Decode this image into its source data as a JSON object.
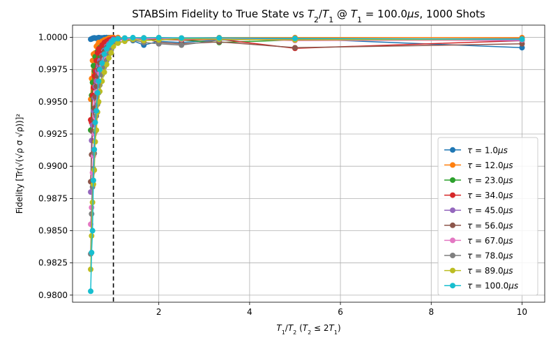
{
  "chart_data": {
    "type": "line",
    "title_parts": [
      {
        "t": "STABSim Fidelity to True State vs "
      },
      {
        "t": "T",
        "i": true
      },
      {
        "t": "2",
        "sub": true
      },
      {
        "t": "/"
      },
      {
        "t": "T",
        "i": true
      },
      {
        "t": "1",
        "sub": true
      },
      {
        "t": " @ "
      },
      {
        "t": "T",
        "i": true
      },
      {
        "t": "1",
        "sub": true
      },
      {
        "t": " = 100.0"
      },
      {
        "t": "μs",
        "i": true
      },
      {
        "t": ", 1000 Shots"
      }
    ],
    "xlabel_parts": [
      {
        "t": "T",
        "i": true
      },
      {
        "t": "1",
        "sub": true
      },
      {
        "t": "/"
      },
      {
        "t": "T",
        "i": true
      },
      {
        "t": "2",
        "sub": true
      },
      {
        "t": " ("
      },
      {
        "t": "T",
        "i": true
      },
      {
        "t": "2",
        "sub": true
      },
      {
        "t": " ≤ 2"
      },
      {
        "t": "T",
        "i": true
      },
      {
        "t": "1",
        "sub": true
      },
      {
        "t": ")"
      }
    ],
    "ylabel": "Fidelity [Tr(√(√ρ σ √ρ))]²",
    "xlim": [
      0.1,
      10.5
    ],
    "ylim": [
      0.97945,
      1.00095
    ],
    "x_ticks": [
      2,
      4,
      6,
      8,
      10
    ],
    "x_tick_labels": [
      "2",
      "4",
      "6",
      "8",
      "10"
    ],
    "y_ticks": [
      0.98,
      0.9825,
      0.985,
      0.9875,
      0.99,
      0.9925,
      0.995,
      0.9975,
      1.0
    ],
    "y_tick_labels": [
      "0.9800",
      "0.9825",
      "0.9850",
      "0.9875",
      "0.9900",
      "0.9925",
      "0.9950",
      "0.9975",
      "1.0000"
    ],
    "grid": true,
    "vline": {
      "x": 1.0,
      "style": "dashed",
      "color": "#000000"
    },
    "legend_position": "lower-right",
    "x": [
      0.5,
      0.52,
      0.54,
      0.56,
      0.58,
      0.6,
      0.625,
      0.65,
      0.675,
      0.7,
      0.75,
      0.8,
      0.85,
      0.9,
      0.95,
      1.0,
      1.1,
      1.25,
      1.43,
      1.67,
      2.0,
      2.5,
      3.33,
      5.0,
      10.0
    ],
    "series": [
      {
        "name": "τ = 1.0μs",
        "name_parts": [
          {
            "t": "τ",
            "i": true
          },
          {
            "t": " = 1.0"
          },
          {
            "t": "μs",
            "i": true
          }
        ],
        "color": "#1f77b4",
        "values": [
          0.99985,
          0.99988,
          0.99992,
          0.99995,
          0.99996,
          0.99994,
          0.99993,
          0.99995,
          0.99998,
          0.99997,
          0.99996,
          0.99998,
          0.99999,
          0.99998,
          0.99999,
          0.99998,
          0.99997,
          0.99985,
          0.99975,
          0.9994,
          0.9997,
          0.9996,
          0.9998,
          0.9999,
          0.9992
        ]
      },
      {
        "name": "τ = 12.0μs",
        "name_parts": [
          {
            "t": "τ",
            "i": true
          },
          {
            "t": " = 12.0"
          },
          {
            "t": "μs",
            "i": true
          }
        ],
        "color": "#ff7f0e",
        "values": [
          0.9952,
          0.9968,
          0.9982,
          0.9987,
          0.9986,
          0.9988,
          0.9993,
          0.9994,
          0.9996,
          0.9995,
          0.9997,
          0.9998,
          0.99985,
          0.99995,
          0.99998,
          0.99999,
          0.99999,
          0.99995,
          0.99992,
          0.99996,
          0.99998,
          0.99995,
          0.99998,
          0.99998,
          0.99998
        ]
      },
      {
        "name": "τ = 23.0μs",
        "name_parts": [
          {
            "t": "τ",
            "i": true
          },
          {
            "t": " = 23.0"
          },
          {
            "t": "μs",
            "i": true
          }
        ],
        "color": "#2ca02c",
        "values": [
          0.9928,
          0.9955,
          0.9965,
          0.9978,
          0.9974,
          0.9985,
          0.9982,
          0.9989,
          0.9984,
          0.9992,
          0.9993,
          0.9995,
          0.9996,
          0.9997,
          0.9998,
          0.99985,
          0.9999,
          0.99975,
          0.9998,
          0.99985,
          0.99982,
          0.9998,
          0.9996,
          0.9998,
          0.99985
        ]
      },
      {
        "name": "τ = 34.0μs",
        "name_parts": [
          {
            "t": "τ",
            "i": true
          },
          {
            "t": " = 34.0"
          },
          {
            "t": "μs",
            "i": true
          }
        ],
        "color": "#d62728",
        "values": [
          0.9936,
          0.9934,
          0.9955,
          0.9961,
          0.997,
          0.9974,
          0.9982,
          0.9988,
          0.9991,
          0.9988,
          0.9994,
          0.9996,
          0.9997,
          0.9998,
          0.99985,
          0.9999,
          0.9998,
          0.9998,
          0.99985,
          0.9999,
          0.99985,
          0.9998,
          0.99985,
          0.99915,
          0.99975
        ]
      },
      {
        "name": "τ = 45.0μs",
        "name_parts": [
          {
            "t": "τ",
            "i": true
          },
          {
            "t": " = 45.0"
          },
          {
            "t": "μs",
            "i": true
          }
        ],
        "color": "#9467bd",
        "values": [
          0.988,
          0.992,
          0.9932,
          0.9943,
          0.9953,
          0.9962,
          0.9966,
          0.9974,
          0.9978,
          0.9982,
          0.9986,
          0.999,
          0.9993,
          0.9995,
          0.9997,
          0.99985,
          0.9999,
          0.99985,
          0.99992,
          0.9999,
          0.99995,
          0.99985,
          0.99993,
          0.99985,
          0.99975
        ]
      },
      {
        "name": "τ = 56.0μs",
        "name_parts": [
          {
            "t": "τ",
            "i": true
          },
          {
            "t": " = 56.0"
          },
          {
            "t": "μs",
            "i": true
          }
        ],
        "color": "#8c564b",
        "values": [
          0.9888,
          0.9909,
          0.9927,
          0.9936,
          0.9945,
          0.9954,
          0.9962,
          0.997,
          0.9975,
          0.998,
          0.9985,
          0.9989,
          0.9992,
          0.9994,
          0.9996,
          0.9998,
          0.99985,
          0.9998,
          0.99985,
          0.99995,
          0.9996,
          0.9995,
          0.99965,
          0.9992,
          0.9995
        ]
      },
      {
        "name": "τ = 67.0μs",
        "name_parts": [
          {
            "t": "τ",
            "i": true
          },
          {
            "t": " = 67.0"
          },
          {
            "t": "μs",
            "i": true
          }
        ],
        "color": "#e377c2",
        "values": [
          0.9855,
          0.9868,
          0.9895,
          0.9908,
          0.9925,
          0.9938,
          0.9949,
          0.9958,
          0.9965,
          0.9972,
          0.9978,
          0.9983,
          0.9987,
          0.999,
          0.9993,
          0.9996,
          0.99975,
          0.99985,
          0.9999,
          0.99985,
          0.99995,
          0.99985,
          0.9999,
          0.99975,
          0.9998
        ]
      },
      {
        "name": "τ = 78.0μs",
        "name_parts": [
          {
            "t": "τ",
            "i": true
          },
          {
            "t": " = 78.0"
          },
          {
            "t": "μs",
            "i": true
          }
        ],
        "color": "#7f7f7f",
        "values": [
          0.9832,
          0.9863,
          0.9884,
          0.9898,
          0.991,
          0.9927,
          0.9939,
          0.9948,
          0.9957,
          0.9963,
          0.9971,
          0.9977,
          0.9982,
          0.9987,
          0.999,
          0.9994,
          0.9996,
          0.9997,
          0.9998,
          0.9996,
          0.9995,
          0.9994,
          0.9998,
          0.99985,
          0.9999
        ]
      },
      {
        "name": "τ = 89.0μs",
        "name_parts": [
          {
            "t": "τ",
            "i": true
          },
          {
            "t": " = 89.0"
          },
          {
            "t": "μs",
            "i": true
          }
        ],
        "color": "#bcbd22",
        "values": [
          0.982,
          0.9846,
          0.9872,
          0.9886,
          0.9897,
          0.9919,
          0.9928,
          0.9942,
          0.995,
          0.9958,
          0.9966,
          0.9973,
          0.9979,
          0.9984,
          0.9988,
          0.9993,
          0.99955,
          0.9997,
          0.99985,
          0.99975,
          0.9998,
          0.9999,
          0.99985,
          0.9998,
          0.99985
        ]
      },
      {
        "name": "τ = 100.0μs",
        "name_parts": [
          {
            "t": "τ",
            "i": true
          },
          {
            "t": " = 100.0"
          },
          {
            "t": "μs",
            "i": true
          }
        ],
        "color": "#17becf",
        "values": [
          0.9803,
          0.9833,
          0.985,
          0.9889,
          0.9913,
          0.9934,
          0.9943,
          0.9957,
          0.9966,
          0.9975,
          0.998,
          0.9987,
          0.9991,
          0.9994,
          0.9996,
          0.9998,
          0.9999,
          0.99995,
          0.99998,
          0.99996,
          0.99998,
          0.99995,
          0.99996,
          0.99992,
          0.99985
        ]
      }
    ]
  }
}
